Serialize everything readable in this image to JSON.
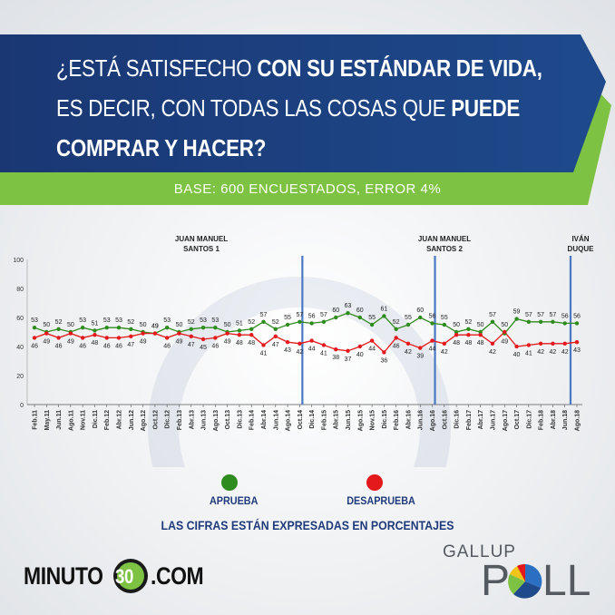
{
  "header": {
    "question_parts": [
      [
        {
          "t": "¿ESTÁ SATISFECHO ",
          "b": false
        },
        {
          "t": "CON SU ESTÁNDAR DE VIDA,",
          "b": true
        }
      ],
      [
        {
          "t": "ES DECIR, CON TODAS LAS COSAS QUE ",
          "b": false
        },
        {
          "t": "PUEDE",
          "b": true
        }
      ],
      [
        {
          "t": "COMPRAR Y HACER?",
          "b": true
        }
      ]
    ],
    "base_text": "BASE: 600 ENCUESTADOS, ERROR 4%"
  },
  "colors": {
    "navy": "#1c3f7d",
    "accent_green": "#7dc243",
    "approve": "#2e8b1e",
    "disapprove": "#e3191c",
    "marker_line": "#4a78c2"
  },
  "chart_data": {
    "type": "line",
    "ylim": [
      0,
      100
    ],
    "yticks": [
      0,
      20,
      40,
      60,
      80,
      100
    ],
    "categories": [
      "Feb.11",
      "May.11",
      "Jun.11",
      "Ago.11",
      "Nov.11",
      "Dic.11",
      "Feb.12",
      "Abr.12",
      "Jun.12",
      "Ago.12",
      "Oct.12",
      "Dic.12",
      "Feb.13",
      "Abr.13",
      "Jun.13",
      "Ago.13",
      "Oct.13",
      "Dic.13",
      "Feb.14",
      "Abr.14",
      "Jun.14",
      "Ago.14",
      "Oct.14",
      "Dic.14",
      "Feb.15",
      "Abr.15",
      "Jun.15",
      "Ago.15",
      "Nov.15",
      "Dic.15",
      "Feb.16",
      "Abr.16",
      "Jun.16",
      "Ago.16",
      "Oct.16",
      "Dic.16",
      "Feb.17",
      "Abr.17",
      "Jun.17",
      "Ago.17",
      "Oct.17",
      "Dic.17",
      "Feb.18",
      "Abr.18",
      "Jun.18",
      "Ago.18"
    ],
    "series": [
      {
        "name": "APRUEBA",
        "color": "#2e8b1e",
        "values": [
          53,
          50,
          52,
          50,
          53,
          51,
          53,
          53,
          52,
          50,
          49,
          53,
          50,
          52,
          53,
          53,
          50,
          51,
          52,
          57,
          52,
          55,
          57,
          56,
          57,
          60,
          63,
          60,
          55,
          61,
          52,
          55,
          60,
          56,
          55,
          50,
          52,
          50,
          57,
          49,
          59,
          57,
          57,
          57,
          56,
          56
        ]
      },
      {
        "name": "DESAPRUEBA",
        "color": "#e3191c",
        "values": [
          46,
          49,
          46,
          49,
          46,
          48,
          46,
          46,
          47,
          49,
          49,
          46,
          49,
          47,
          45,
          46,
          49,
          48,
          48,
          41,
          47,
          43,
          42,
          44,
          41,
          38,
          37,
          40,
          44,
          36,
          46,
          42,
          39,
          44,
          42,
          48,
          48,
          48,
          42,
          50,
          40,
          41,
          42,
          42,
          42,
          43
        ]
      }
    ],
    "markers": [
      {
        "index": 22,
        "label": [
          "JUAN MANUEL",
          "SANTOS 1"
        ]
      },
      {
        "index": 33,
        "label": [
          "JUAN MANUEL",
          "SANTOS 2"
        ]
      },
      {
        "index": 45,
        "label": [
          "IVÁN",
          "DUQUE"
        ]
      }
    ]
  },
  "legend": {
    "approve_label": "APRUEBA",
    "disapprove_label": "DESAPRUEBA",
    "note": "LAS CIFRAS ESTÁN EXPRESADAS EN PORCENTAJES"
  },
  "logos": {
    "minuto_left": "MINUTO",
    "minuto_num": "30",
    "minuto_right": ".COM",
    "gallup": "GALLUP",
    "poll_p": "P",
    "poll_ll": "LL"
  }
}
